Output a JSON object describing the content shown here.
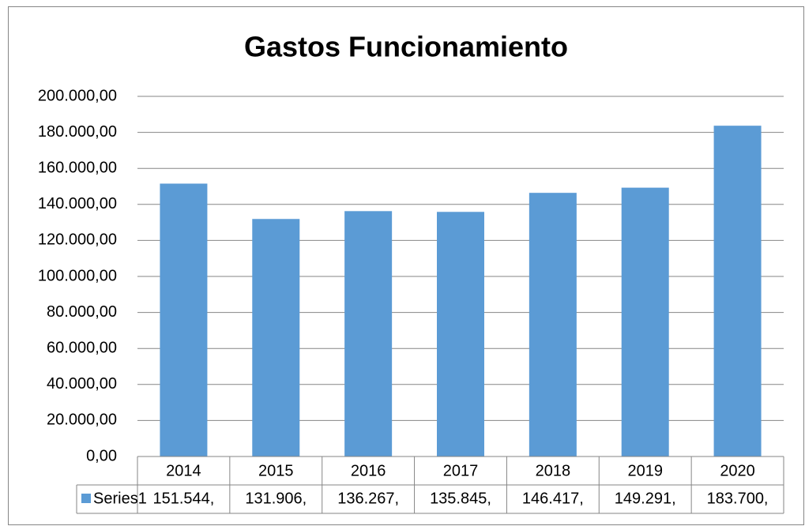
{
  "chart_data": {
    "type": "bar",
    "title": "Gastos Funcionamiento",
    "categories": [
      "2014",
      "2015",
      "2016",
      "2017",
      "2018",
      "2019",
      "2020"
    ],
    "series": [
      {
        "name": "Series1",
        "color": "#5b9bd5",
        "values": [
          151544,
          131906,
          136267,
          135845,
          146417,
          149291,
          183700
        ],
        "value_labels": [
          "151.544,",
          "131.906,",
          "136.267,",
          "135.845,",
          "146.417,",
          "149.291,",
          "183.700,"
        ]
      }
    ],
    "ylim": [
      0,
      200000
    ],
    "yticks": [
      {
        "value": 0,
        "label": "0,00"
      },
      {
        "value": 20000,
        "label": "20.000,00"
      },
      {
        "value": 40000,
        "label": "40.000,00"
      },
      {
        "value": 60000,
        "label": "60.000,00"
      },
      {
        "value": 80000,
        "label": "80.000,00"
      },
      {
        "value": 100000,
        "label": "100.000,00"
      },
      {
        "value": 120000,
        "label": "120.000,00"
      },
      {
        "value": 140000,
        "label": "140.000,00"
      },
      {
        "value": 160000,
        "label": "160.000,00"
      },
      {
        "value": 180000,
        "label": "180.000,00"
      },
      {
        "value": 200000,
        "label": "200.000,00"
      }
    ],
    "grid": true
  }
}
